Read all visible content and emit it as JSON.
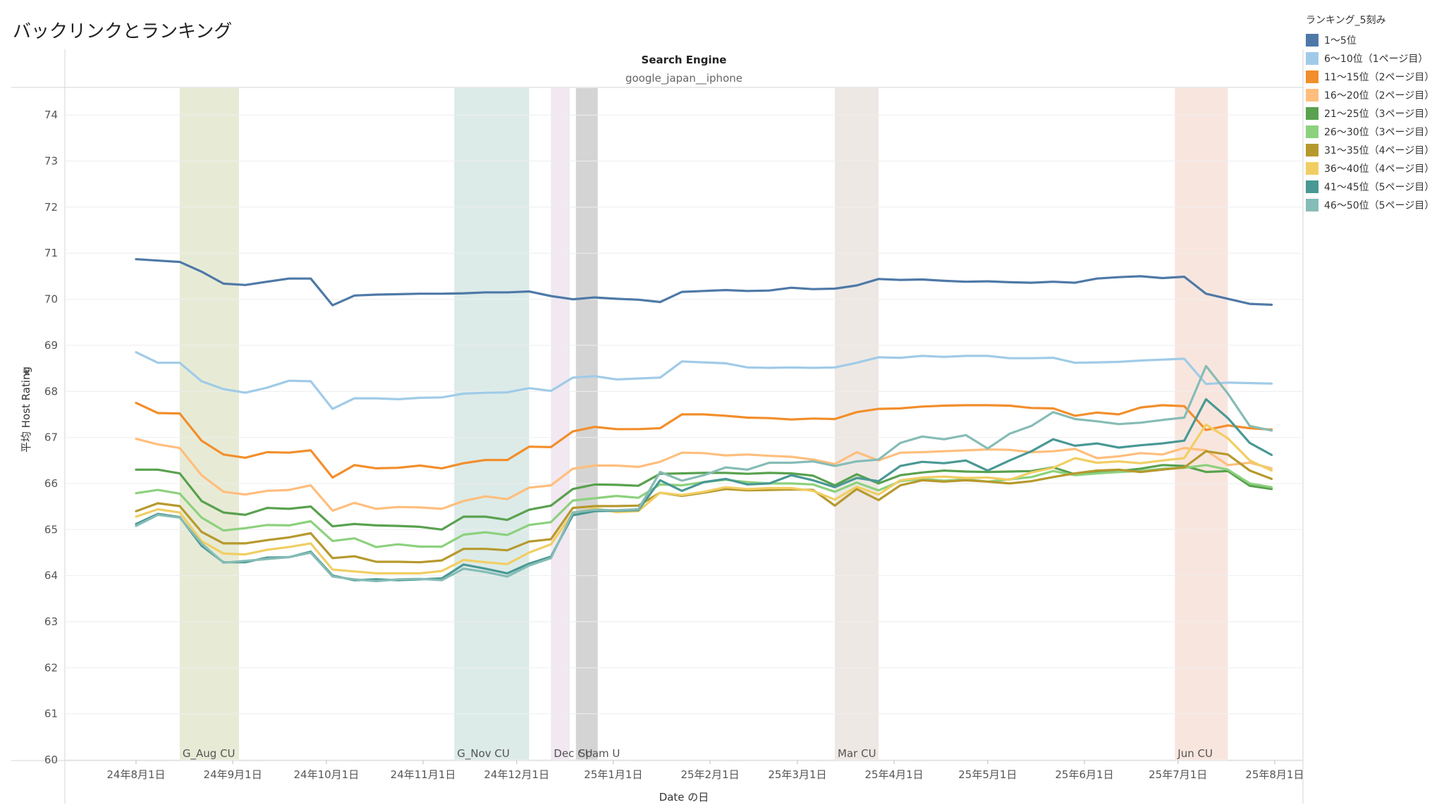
{
  "page": {
    "title": "バックリンクとランキング"
  },
  "legend": {
    "title": "ランキング_5刻み"
  },
  "chart_data": {
    "type": "line",
    "header": "Search Engine",
    "subheader": "google_japan__iphone",
    "xlabel": "Date の日",
    "ylabel": "平均 Host Rating",
    "ylabel_icon": "pin-icon",
    "ylim": [
      60,
      74.6
    ],
    "yticks": [
      60,
      61,
      62,
      63,
      64,
      65,
      66,
      67,
      68,
      69,
      70,
      71,
      72,
      73,
      74
    ],
    "xlim": [
      "2024-07-25",
      "2025-08-06"
    ],
    "grid": "horizontal",
    "legend_position": "right",
    "xticks": [
      {
        "date": "2024-08-01",
        "label": "24年8月1日"
      },
      {
        "date": "2024-09-01",
        "label": "24年9月1日"
      },
      {
        "date": "2024-10-01",
        "label": "24年10月1日"
      },
      {
        "date": "2024-11-01",
        "label": "24年11月1日"
      },
      {
        "date": "2024-12-01",
        "label": "24年12月1日"
      },
      {
        "date": "2025-01-01",
        "label": "25年1月1日"
      },
      {
        "date": "2025-02-01",
        "label": "25年2月1日"
      },
      {
        "date": "2025-03-01",
        "label": "25年3月1日"
      },
      {
        "date": "2025-04-01",
        "label": "25年4月1日"
      },
      {
        "date": "2025-05-01",
        "label": "25年5月1日"
      },
      {
        "date": "2025-06-01",
        "label": "25年6月1日"
      },
      {
        "date": "2025-07-01",
        "label": "25年7月1日"
      },
      {
        "date": "2025-08-01",
        "label": "25年8月1日"
      }
    ],
    "bands": [
      {
        "label": "G_Aug CU",
        "start": "2024-08-15",
        "end": "2024-09-03",
        "color": "#e7ebd6"
      },
      {
        "label": "G_Nov CU",
        "start": "2024-11-11",
        "end": "2024-12-05",
        "color": "#dcebe8"
      },
      {
        "label": "Dec CU",
        "start": "2024-12-12",
        "end": "2024-12-18",
        "color": "#f1e8f1"
      },
      {
        "label": "Spam U",
        "start": "2024-12-20",
        "end": "2024-12-27",
        "color": "#d4d4d4"
      },
      {
        "label": "Mar CU",
        "start": "2025-03-13",
        "end": "2025-03-27",
        "color": "#ede8e4"
      },
      {
        "label": "Jun CU",
        "start": "2025-06-30",
        "end": "2025-07-17",
        "color": "#f8e6de"
      }
    ],
    "x": [
      "2024-08-01",
      "2024-08-08",
      "2024-08-15",
      "2024-08-22",
      "2024-08-29",
      "2024-09-05",
      "2024-09-12",
      "2024-09-19",
      "2024-09-26",
      "2024-10-03",
      "2024-10-10",
      "2024-10-17",
      "2024-10-24",
      "2024-10-31",
      "2024-11-07",
      "2024-11-14",
      "2024-11-21",
      "2024-11-28",
      "2024-12-05",
      "2024-12-12",
      "2024-12-19",
      "2024-12-26",
      "2025-01-02",
      "2025-01-09",
      "2025-01-16",
      "2025-01-23",
      "2025-01-30",
      "2025-02-06",
      "2025-02-13",
      "2025-02-20",
      "2025-02-27",
      "2025-03-06",
      "2025-03-13",
      "2025-03-20",
      "2025-03-27",
      "2025-04-03",
      "2025-04-10",
      "2025-04-17",
      "2025-04-24",
      "2025-05-01",
      "2025-05-08",
      "2025-05-15",
      "2025-05-22",
      "2025-05-29",
      "2025-06-05",
      "2025-06-12",
      "2025-06-19",
      "2025-06-26",
      "2025-07-03",
      "2025-07-10",
      "2025-07-17",
      "2025-07-24",
      "2025-07-31"
    ],
    "series": [
      {
        "name": "1〜5位",
        "color": "#4e79a7",
        "values": [
          70.87,
          70.84,
          70.81,
          70.6,
          70.34,
          70.31,
          70.38,
          70.45,
          70.45,
          69.87,
          70.08,
          70.1,
          70.11,
          70.12,
          70.12,
          70.13,
          70.15,
          70.15,
          70.17,
          70.07,
          70.0,
          70.04,
          70.01,
          69.99,
          69.94,
          70.16,
          70.18,
          70.2,
          70.18,
          70.19,
          70.25,
          70.22,
          70.23,
          70.3,
          70.44,
          70.42,
          70.43,
          70.4,
          70.38,
          70.39,
          70.37,
          70.36,
          70.38,
          70.36,
          70.45,
          70.48,
          70.5,
          70.46,
          70.49,
          70.12,
          70.01,
          69.9,
          69.88
        ]
      },
      {
        "name": "6〜10位（1ページ目）",
        "color": "#a0cbe8",
        "values": [
          68.85,
          68.62,
          68.62,
          68.22,
          68.05,
          67.97,
          68.08,
          68.23,
          68.22,
          67.62,
          67.85,
          67.85,
          67.83,
          67.86,
          67.87,
          67.95,
          67.97,
          67.98,
          68.07,
          68.01,
          68.3,
          68.33,
          68.26,
          68.28,
          68.3,
          68.65,
          68.63,
          68.61,
          68.52,
          68.51,
          68.52,
          68.51,
          68.52,
          68.62,
          68.74,
          68.73,
          68.77,
          68.75,
          68.77,
          68.77,
          68.72,
          68.72,
          68.73,
          68.62,
          68.63,
          68.64,
          68.67,
          68.69,
          68.71,
          68.16,
          68.19,
          68.18,
          68.17
        ]
      },
      {
        "name": "11〜15位（2ページ目）",
        "color": "#f28e2b",
        "values": [
          67.75,
          67.53,
          67.52,
          66.93,
          66.63,
          66.56,
          66.68,
          66.67,
          66.72,
          66.13,
          66.4,
          66.33,
          66.34,
          66.39,
          66.33,
          66.44,
          66.51,
          66.51,
          66.8,
          66.79,
          67.13,
          67.23,
          67.18,
          67.18,
          67.2,
          67.5,
          67.5,
          67.47,
          67.43,
          67.42,
          67.39,
          67.41,
          67.4,
          67.55,
          67.62,
          67.63,
          67.67,
          67.69,
          67.7,
          67.7,
          67.69,
          67.64,
          67.63,
          67.47,
          67.54,
          67.5,
          67.65,
          67.7,
          67.68,
          67.16,
          67.26,
          67.2,
          67.17
        ]
      },
      {
        "name": "16〜20位（2ページ目）",
        "color": "#ffbe7d",
        "values": [
          66.97,
          66.85,
          66.77,
          66.18,
          65.82,
          65.76,
          65.84,
          65.86,
          65.96,
          65.41,
          65.58,
          65.45,
          65.49,
          65.48,
          65.45,
          65.62,
          65.72,
          65.66,
          65.91,
          65.96,
          66.32,
          66.39,
          66.39,
          66.36,
          66.47,
          66.67,
          66.66,
          66.61,
          66.63,
          66.6,
          66.58,
          66.52,
          66.42,
          66.68,
          66.5,
          66.67,
          66.68,
          66.7,
          66.72,
          66.74,
          66.73,
          66.68,
          66.7,
          66.75,
          66.55,
          66.59,
          66.66,
          66.63,
          66.77,
          66.72,
          66.4,
          66.45,
          66.33
        ]
      },
      {
        "name": "21〜25位（3ページ目）",
        "color": "#59a14f",
        "values": [
          66.3,
          66.3,
          66.22,
          65.62,
          65.37,
          65.32,
          65.47,
          65.45,
          65.5,
          65.07,
          65.12,
          65.09,
          65.08,
          65.06,
          65.0,
          65.28,
          65.28,
          65.21,
          65.43,
          65.52,
          65.88,
          65.98,
          65.97,
          65.95,
          66.21,
          66.22,
          66.23,
          66.23,
          66.21,
          66.23,
          66.22,
          66.17,
          65.96,
          66.2,
          66.0,
          66.18,
          66.24,
          66.28,
          66.26,
          66.25,
          66.26,
          66.27,
          66.35,
          66.2,
          66.25,
          66.27,
          66.32,
          66.4,
          66.38,
          66.25,
          66.27,
          65.95,
          65.88
        ]
      },
      {
        "name": "26〜30位（3ページ目）",
        "color": "#8cd17d",
        "values": [
          65.79,
          65.86,
          65.78,
          65.26,
          64.98,
          65.03,
          65.1,
          65.09,
          65.18,
          64.75,
          64.81,
          64.62,
          64.68,
          64.63,
          64.63,
          64.89,
          64.94,
          64.88,
          65.1,
          65.16,
          65.63,
          65.68,
          65.73,
          65.69,
          65.98,
          65.96,
          66.03,
          66.08,
          66.03,
          66.0,
          66.0,
          65.98,
          65.82,
          66.02,
          65.85,
          66.05,
          66.1,
          66.06,
          66.09,
          66.04,
          66.09,
          66.14,
          66.27,
          66.18,
          66.22,
          66.25,
          66.27,
          66.32,
          66.34,
          66.4,
          66.3,
          66.0,
          65.92
        ]
      },
      {
        "name": "31〜35位（4ページ目）",
        "color": "#b6992d",
        "values": [
          65.4,
          65.57,
          65.51,
          64.95,
          64.7,
          64.7,
          64.77,
          64.83,
          64.92,
          64.38,
          64.42,
          64.3,
          64.3,
          64.29,
          64.33,
          64.58,
          64.58,
          64.55,
          64.74,
          64.79,
          65.47,
          65.51,
          65.51,
          65.52,
          65.8,
          65.73,
          65.8,
          65.88,
          65.85,
          65.86,
          65.87,
          65.86,
          65.52,
          65.88,
          65.64,
          65.96,
          66.07,
          66.04,
          66.07,
          66.04,
          66.0,
          66.05,
          66.14,
          66.22,
          66.28,
          66.3,
          66.25,
          66.3,
          66.35,
          66.7,
          66.63,
          66.28,
          66.1
        ]
      },
      {
        "name": "36〜40位（4ページ目）",
        "color": "#f1ce63",
        "values": [
          65.28,
          65.44,
          65.37,
          64.75,
          64.48,
          64.46,
          64.56,
          64.62,
          64.7,
          64.13,
          64.09,
          64.05,
          64.05,
          64.05,
          64.1,
          64.34,
          64.29,
          64.25,
          64.5,
          64.68,
          65.36,
          65.46,
          65.38,
          65.4,
          65.8,
          65.75,
          65.82,
          65.92,
          65.88,
          65.9,
          65.9,
          65.84,
          65.65,
          65.93,
          65.76,
          66.07,
          66.13,
          66.15,
          66.12,
          66.13,
          66.08,
          66.24,
          66.34,
          66.55,
          66.45,
          66.48,
          66.44,
          66.5,
          66.55,
          67.28,
          66.98,
          66.5,
          66.28
        ]
      },
      {
        "name": "41〜45位（5ページ目）",
        "color": "#499894",
        "values": [
          65.12,
          65.34,
          65.27,
          64.65,
          64.29,
          64.29,
          64.39,
          64.4,
          64.52,
          64.0,
          63.9,
          63.92,
          63.9,
          63.92,
          63.94,
          64.24,
          64.15,
          64.05,
          64.26,
          64.41,
          65.31,
          65.4,
          65.41,
          65.42,
          66.07,
          65.84,
          66.03,
          66.1,
          65.98,
          66.0,
          66.18,
          66.07,
          65.92,
          66.12,
          66.05,
          66.38,
          66.47,
          66.44,
          66.5,
          66.28,
          66.5,
          66.7,
          66.96,
          66.82,
          66.87,
          66.78,
          66.83,
          66.87,
          66.93,
          67.83,
          67.42,
          66.88,
          66.62
        ]
      },
      {
        "name": "46〜50位（5ページ目）",
        "color": "#86bcb6",
        "values": [
          65.08,
          65.32,
          65.26,
          64.7,
          64.28,
          64.32,
          64.36,
          64.4,
          64.5,
          63.98,
          63.92,
          63.88,
          63.92,
          63.93,
          63.9,
          64.15,
          64.08,
          63.98,
          64.22,
          64.38,
          65.37,
          65.43,
          65.42,
          65.44,
          66.25,
          66.06,
          66.18,
          66.35,
          66.3,
          66.45,
          66.45,
          66.48,
          66.38,
          66.48,
          66.52,
          66.88,
          67.02,
          66.96,
          67.05,
          66.76,
          67.08,
          67.25,
          67.55,
          67.4,
          67.35,
          67.29,
          67.32,
          67.38,
          67.43,
          68.55,
          67.95,
          67.25,
          67.15
        ]
      }
    ]
  }
}
